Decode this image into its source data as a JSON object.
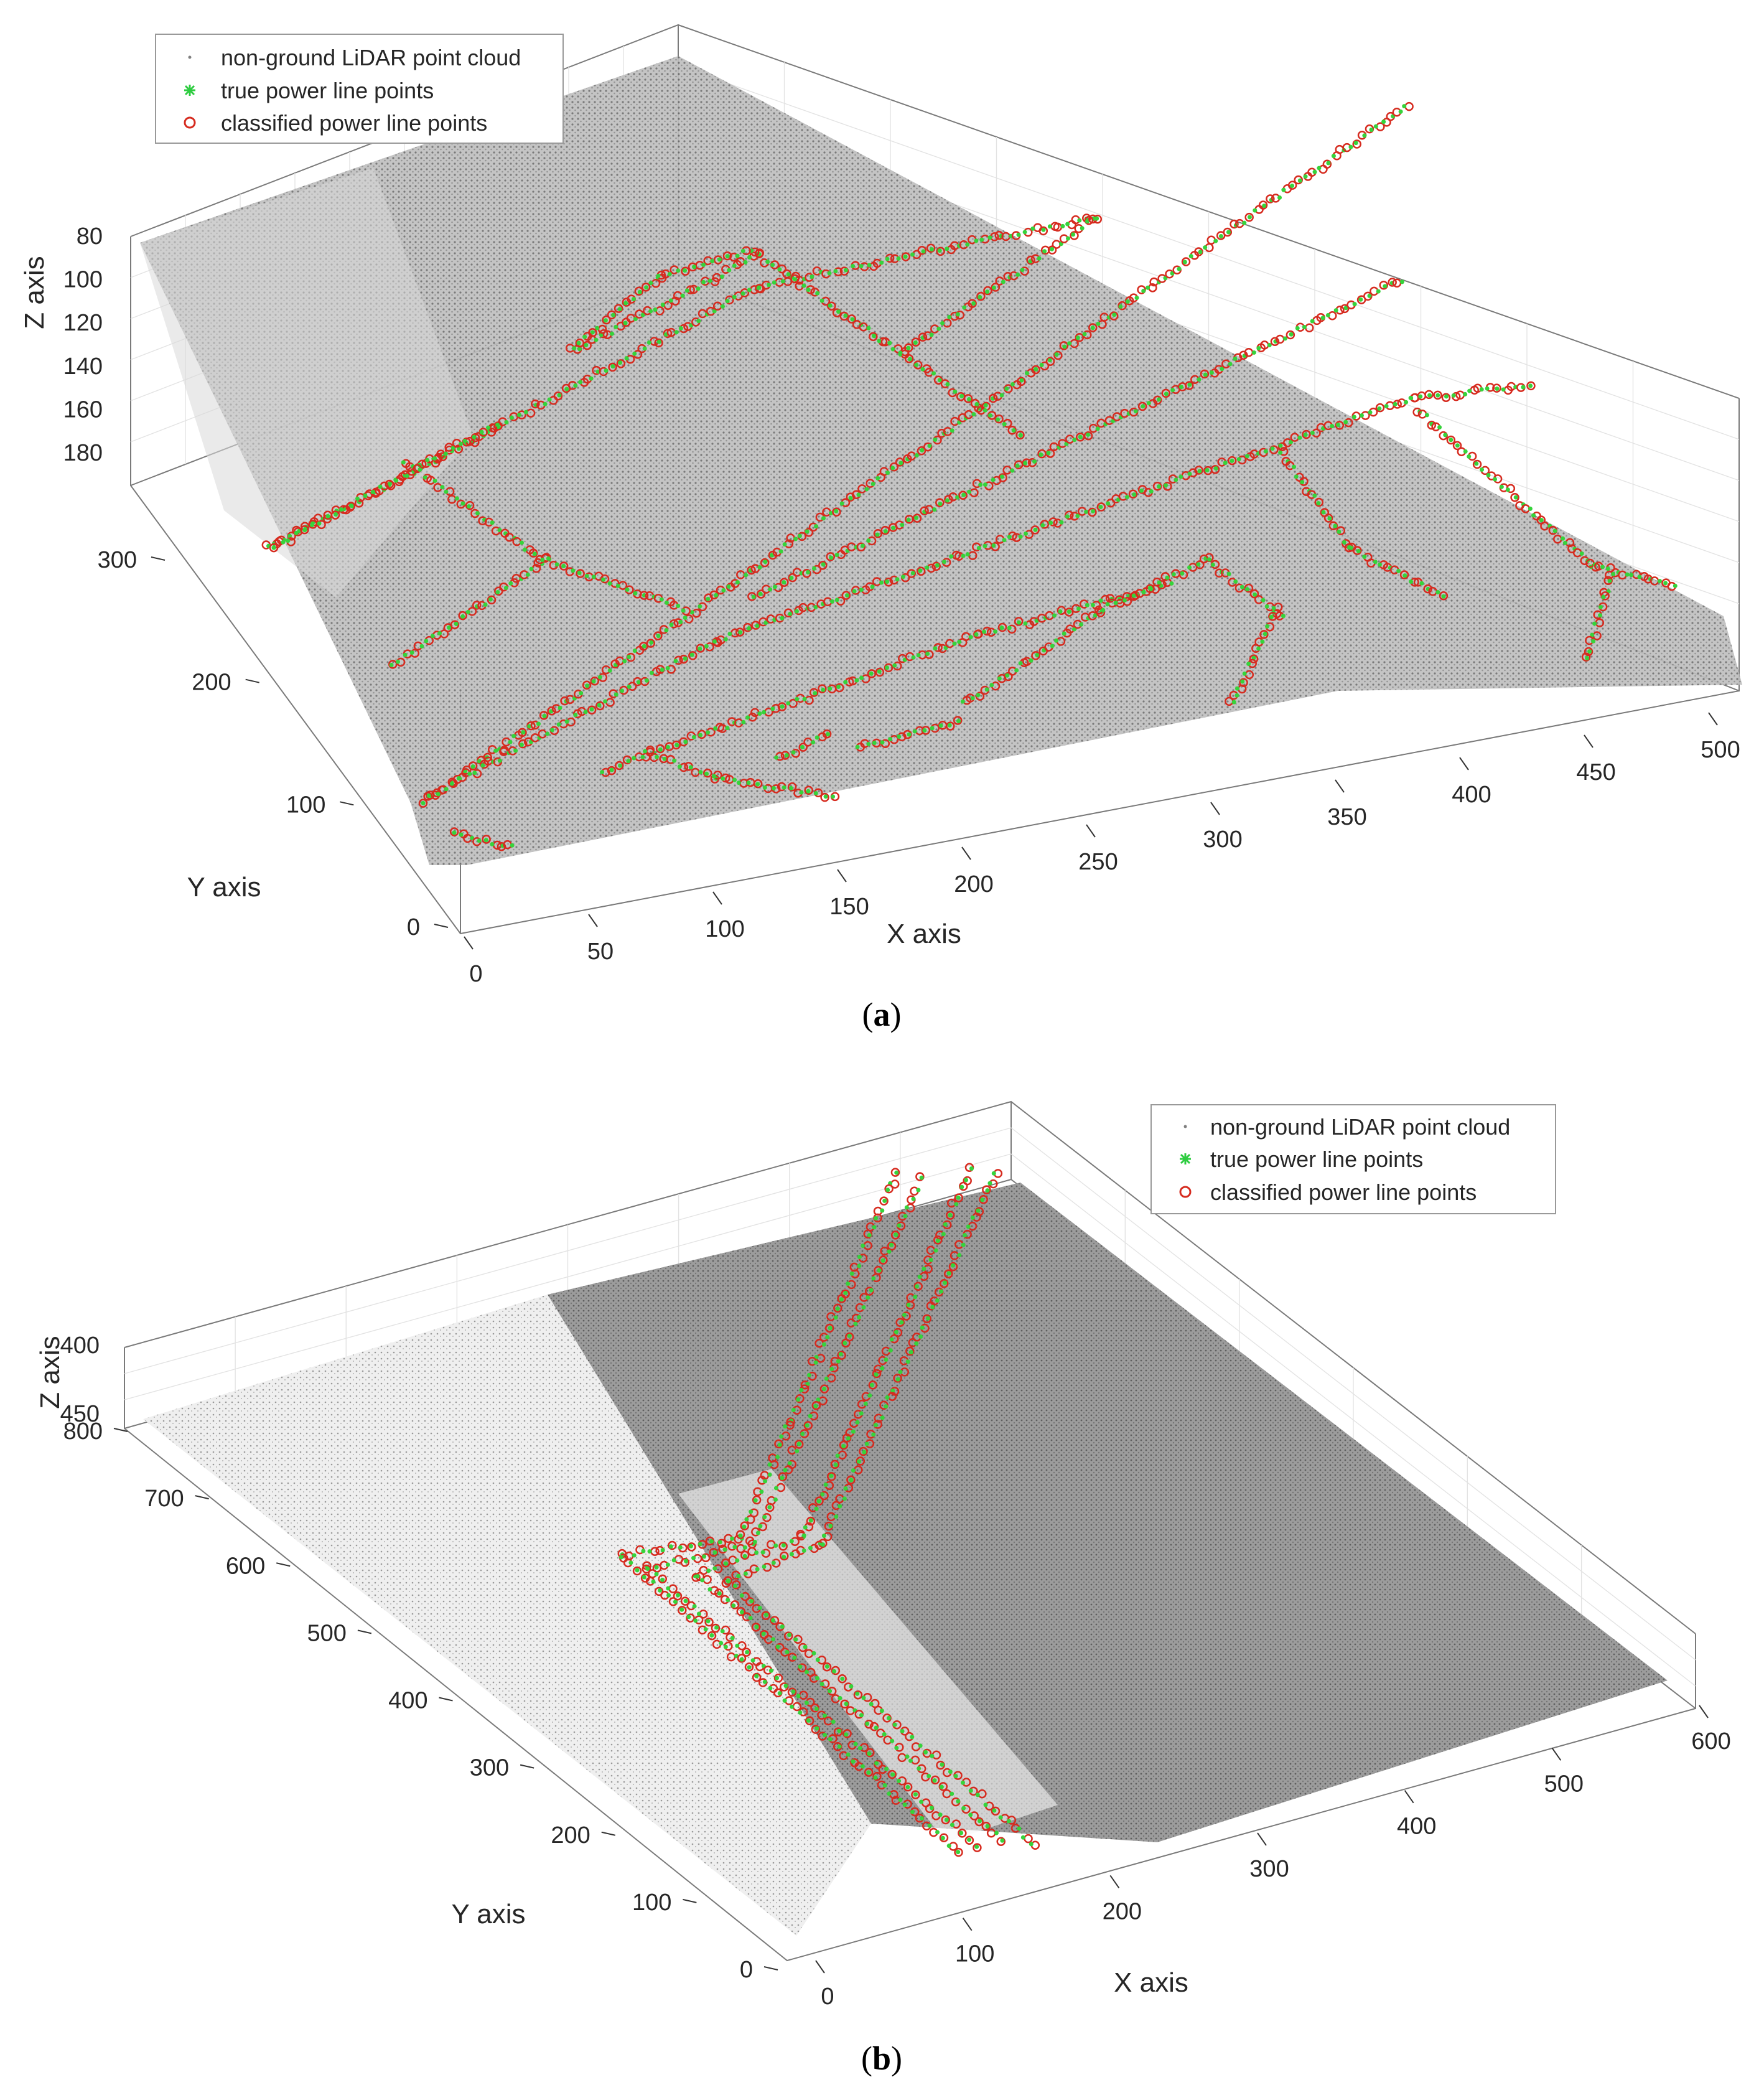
{
  "chart_data": [
    {
      "type": "scatter",
      "panel_label": "a",
      "title": "",
      "xlabel": "X axis",
      "ylabel": "Y axis",
      "zlabel": "Z axis",
      "xlim": [
        0,
        500
      ],
      "ylim": [
        0,
        350
      ],
      "zlim": [
        60,
        180
      ],
      "x_ticks": [
        "0",
        "50",
        "100",
        "150",
        "200",
        "250",
        "300",
        "350",
        "400",
        "450",
        "500"
      ],
      "y_ticks": [
        "0",
        "100",
        "200",
        "300"
      ],
      "z_ticks": [
        "80",
        "100",
        "120",
        "140",
        "160",
        "180"
      ],
      "grid": true,
      "legend_position": "top-left",
      "series": [
        {
          "name": "non-ground LiDAR point cloud",
          "marker": "dot",
          "color": "#7f7f7f"
        },
        {
          "name": "true power line points",
          "marker": "asterisk",
          "color": "#2ecc40"
        },
        {
          "name": "classified power line points",
          "marker": "circle",
          "color": "#d62b1f"
        }
      ]
    },
    {
      "type": "scatter",
      "panel_label": "b",
      "title": "",
      "xlabel": "X axis",
      "ylabel": "Y axis",
      "zlabel": "Z axis",
      "xlim": [
        0,
        600
      ],
      "ylim": [
        0,
        800
      ],
      "zlim": [
        380,
        470
      ],
      "x_ticks": [
        "0",
        "100",
        "200",
        "300",
        "400",
        "500",
        "600"
      ],
      "y_ticks": [
        "0",
        "100",
        "200",
        "300",
        "400",
        "500",
        "600",
        "700",
        "800"
      ],
      "z_ticks": [
        "400",
        "450"
      ],
      "grid": true,
      "legend_position": "top-right",
      "series": [
        {
          "name": "non-ground LiDAR point cloud",
          "marker": "dot",
          "color": "#7f7f7f"
        },
        {
          "name": "true power line points",
          "marker": "asterisk",
          "color": "#2ecc40"
        },
        {
          "name": "classified power line points",
          "marker": "circle",
          "color": "#d62b1f"
        }
      ]
    }
  ]
}
